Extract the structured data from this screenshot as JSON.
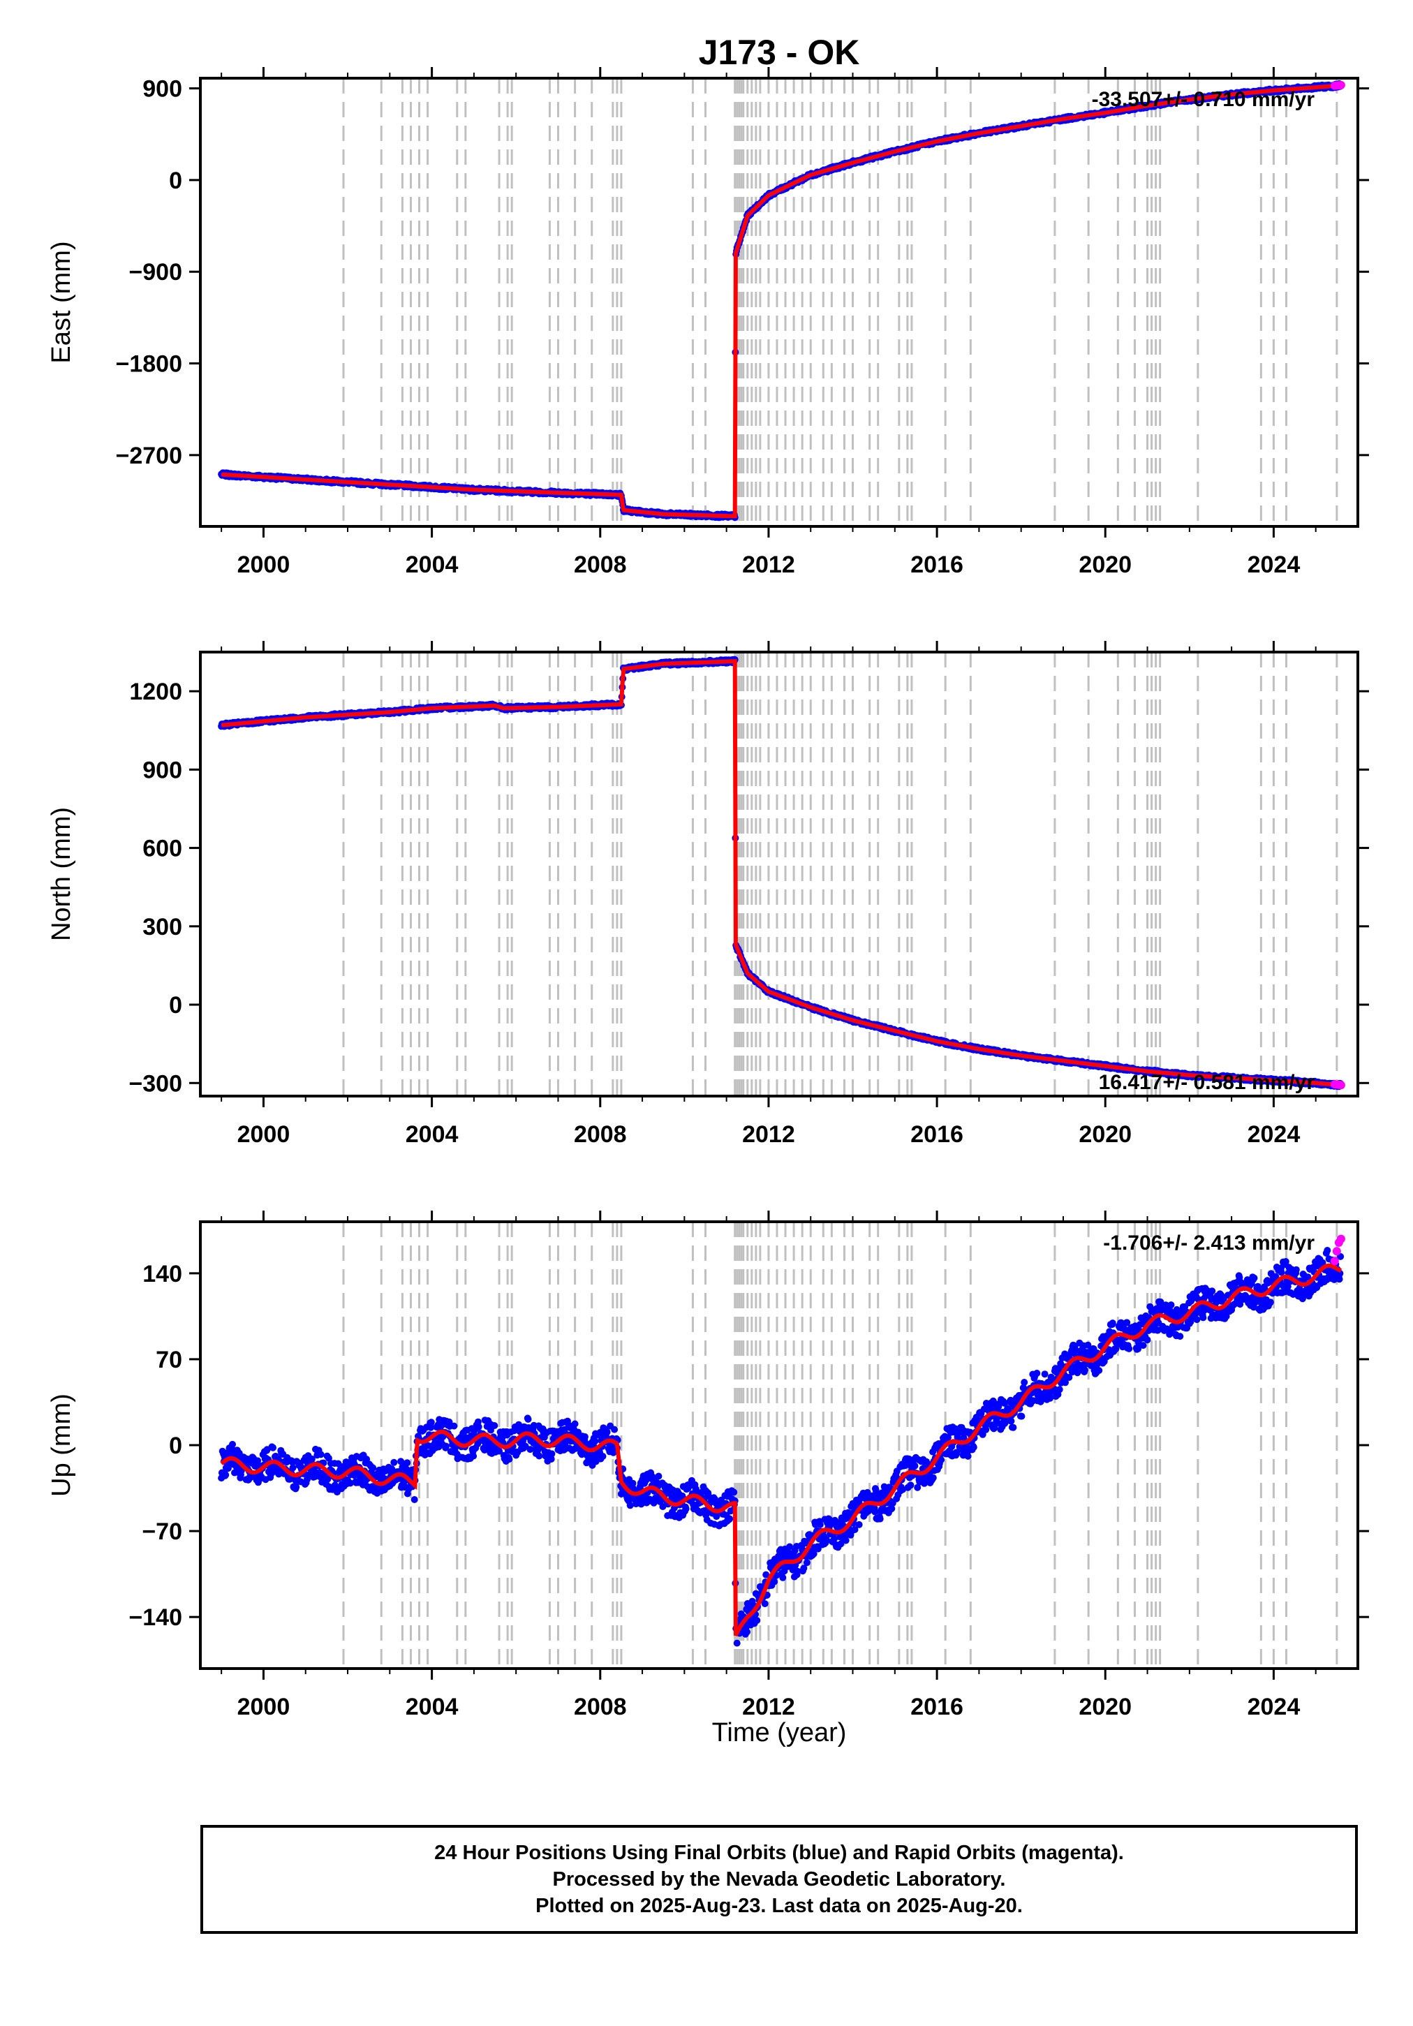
{
  "title": "J173 - OK",
  "xlabel": "Time (year)",
  "footer": {
    "line1": "24 Hour Positions Using Final Orbits (blue) and Rapid Orbits (magenta).",
    "line2": "Processed by the Nevada Geodetic Laboratory.",
    "line3": "Plotted on 2025-Aug-23. Last data on 2025-Aug-20."
  },
  "colors": {
    "final_orbits": "#0000ff",
    "rapid_orbits": "#ff00ff",
    "model": "#ff0000",
    "event_lines": "#c0c0c0"
  },
  "chart_data": [
    {
      "type": "scatter",
      "ylabel": "East (mm)",
      "rate_label": "-33.507+/- 0.710 mm/yr",
      "x_ticks": [
        "2000",
        "2004",
        "2008",
        "2012",
        "2016",
        "2020",
        "2024"
      ],
      "x_tick_values": [
        2000,
        2004,
        2008,
        2012,
        2016,
        2020,
        2024
      ],
      "xlim": [
        1998.5,
        2026.0
      ],
      "y_ticks": [
        "900",
        "0",
        "-900",
        "-1800",
        "-2700"
      ],
      "y_tick_values": [
        900,
        0,
        -900,
        -1800,
        -2700
      ],
      "ylim": [
        -3400,
        1000
      ],
      "series": [
        {
          "style": "final_orbits",
          "x": [
            1999.0,
            2001.0,
            2003.0,
            2005.0,
            2007.0,
            2008.5,
            2008.55,
            2009.5,
            2011.2,
            2011.22,
            2011.5,
            2012.0,
            2013.0,
            2014.0,
            2015.0,
            2016.0,
            2017.0,
            2018.0,
            2019.0,
            2020.0,
            2021.0,
            2022.0,
            2023.0,
            2024.0,
            2025.0,
            2025.6
          ],
          "y": [
            -2890,
            -2940,
            -2990,
            -3040,
            -3070,
            -3090,
            -3240,
            -3280,
            -3300,
            -720,
            -350,
            -150,
            50,
            170,
            280,
            380,
            460,
            530,
            600,
            660,
            730,
            790,
            840,
            880,
            910,
            930
          ]
        },
        {
          "style": "rapid_orbits",
          "x": [
            2025.45,
            2025.5,
            2025.55,
            2025.6
          ],
          "y": [
            926,
            928,
            930,
            932
          ]
        }
      ],
      "event_years": [
        2001.9,
        2002.8,
        2003.3,
        2003.5,
        2003.7,
        2003.9,
        2004.6,
        2004.8,
        2005.6,
        2005.8,
        2005.9,
        2006.8,
        2007.0,
        2007.4,
        2007.8,
        2008.3,
        2008.4,
        2008.5,
        2010.2,
        2010.5,
        2011.2,
        2011.25,
        2011.3,
        2011.35,
        2011.4,
        2011.5,
        2011.6,
        2011.7,
        2011.8,
        2012.0,
        2012.2,
        2012.4,
        2012.6,
        2012.8,
        2013.0,
        2013.3,
        2013.5,
        2013.8,
        2014.0,
        2014.4,
        2014.6,
        2015.1,
        2015.3,
        2015.4,
        2016.2,
        2016.8,
        2018.8,
        2019.6,
        2020.3,
        2020.7,
        2021.0,
        2021.1,
        2021.2,
        2021.3,
        2022.2,
        2023.7,
        2024.0,
        2024.3,
        2025.5
      ]
    },
    {
      "type": "scatter",
      "ylabel": "North (mm)",
      "rate_label": "16.417+/- 0.581 mm/yr",
      "x_ticks": [
        "2000",
        "2004",
        "2008",
        "2012",
        "2016",
        "2020",
        "2024"
      ],
      "x_tick_values": [
        2000,
        2004,
        2008,
        2012,
        2016,
        2020,
        2024
      ],
      "xlim": [
        1998.5,
        2026.0
      ],
      "y_ticks": [
        "1200",
        "900",
        "600",
        "300",
        "0",
        "-300"
      ],
      "y_tick_values": [
        1200,
        900,
        600,
        300,
        0,
        -300
      ],
      "ylim": [
        -350,
        1350
      ],
      "series": [
        {
          "style": "final_orbits",
          "x": [
            1999.0,
            2001.0,
            2003.0,
            2004.0,
            2005.5,
            2005.7,
            2007.0,
            2008.5,
            2008.55,
            2009.5,
            2011.2,
            2011.22,
            2011.5,
            2012.0,
            2013.0,
            2014.0,
            2015.0,
            2016.0,
            2017.0,
            2018.0,
            2019.0,
            2020.0,
            2021.0,
            2022.0,
            2023.0,
            2024.0,
            2025.0,
            2025.6
          ],
          "y": [
            1070,
            1100,
            1120,
            1135,
            1145,
            1135,
            1140,
            1150,
            1285,
            1305,
            1315,
            230,
            120,
            50,
            -10,
            -60,
            -100,
            -140,
            -170,
            -195,
            -215,
            -235,
            -255,
            -270,
            -280,
            -290,
            -300,
            -308
          ]
        },
        {
          "style": "rapid_orbits",
          "x": [
            2025.45,
            2025.5,
            2025.55,
            2025.6
          ],
          "y": [
            -305,
            -306,
            -307,
            -308
          ]
        }
      ],
      "event_years": [
        2001.9,
        2002.8,
        2003.3,
        2003.5,
        2003.7,
        2003.9,
        2004.6,
        2004.8,
        2005.6,
        2005.8,
        2005.9,
        2006.8,
        2007.0,
        2007.4,
        2007.8,
        2008.3,
        2008.4,
        2008.5,
        2010.2,
        2010.5,
        2011.2,
        2011.25,
        2011.3,
        2011.35,
        2011.4,
        2011.5,
        2011.6,
        2011.7,
        2011.8,
        2012.0,
        2012.2,
        2012.4,
        2012.6,
        2012.8,
        2013.0,
        2013.3,
        2013.5,
        2013.8,
        2014.0,
        2014.4,
        2014.6,
        2015.1,
        2015.3,
        2015.4,
        2016.2,
        2016.8,
        2018.8,
        2019.6,
        2020.3,
        2020.7,
        2021.0,
        2021.1,
        2021.2,
        2021.3,
        2022.2,
        2023.7,
        2024.0,
        2024.3,
        2025.5
      ]
    },
    {
      "type": "scatter",
      "ylabel": "Up (mm)",
      "rate_label": "-1.706+/- 2.413 mm/yr",
      "x_ticks": [
        "2000",
        "2004",
        "2008",
        "2012",
        "2016",
        "2020",
        "2024"
      ],
      "x_tick_values": [
        2000,
        2004,
        2008,
        2012,
        2016,
        2020,
        2024
      ],
      "xlim": [
        1998.5,
        2026.0
      ],
      "y_ticks": [
        "140",
        "70",
        "0",
        "-70",
        "-140"
      ],
      "y_tick_values": [
        140,
        70,
        0,
        -70,
        -140
      ],
      "ylim": [
        -182,
        182
      ],
      "series": [
        {
          "style": "final_orbits",
          "x": [
            1999.0,
            2000.0,
            2001.0,
            2002.0,
            2003.0,
            2003.6,
            2003.65,
            2004.5,
            2005.5,
            2006.5,
            2007.5,
            2008.4,
            2008.5,
            2009.0,
            2010.0,
            2011.0,
            2011.2,
            2011.22,
            2011.5,
            2012.0,
            2013.0,
            2014.0,
            2015.0,
            2016.0,
            2017.0,
            2018.0,
            2019.0,
            2020.0,
            2021.0,
            2022.0,
            2023.0,
            2024.0,
            2025.0,
            2025.6
          ],
          "y": [
            -15,
            -18,
            -20,
            -22,
            -28,
            -30,
            8,
            5,
            3,
            5,
            2,
            -2,
            -30,
            -38,
            -45,
            -50,
            -52,
            -160,
            -140,
            -110,
            -80,
            -60,
            -35,
            -10,
            15,
            35,
            60,
            80,
            98,
            108,
            120,
            130,
            138,
            145
          ]
        },
        {
          "style": "rapid_orbits",
          "x": [
            2025.45,
            2025.5,
            2025.55,
            2025.6
          ],
          "y": [
            150,
            158,
            165,
            168
          ]
        }
      ],
      "event_years": [
        2001.9,
        2002.8,
        2003.3,
        2003.5,
        2003.7,
        2003.9,
        2004.6,
        2004.8,
        2005.6,
        2005.8,
        2005.9,
        2006.8,
        2007.0,
        2007.4,
        2007.8,
        2008.3,
        2008.4,
        2008.5,
        2010.2,
        2010.5,
        2011.2,
        2011.25,
        2011.3,
        2011.35,
        2011.4,
        2011.5,
        2011.6,
        2011.7,
        2011.8,
        2012.0,
        2012.2,
        2012.4,
        2012.6,
        2012.8,
        2013.0,
        2013.3,
        2013.5,
        2013.8,
        2014.0,
        2014.4,
        2014.6,
        2015.1,
        2015.3,
        2015.4,
        2016.2,
        2016.8,
        2018.8,
        2019.6,
        2020.3,
        2020.7,
        2021.0,
        2021.1,
        2021.2,
        2021.3,
        2022.2,
        2023.7,
        2024.0,
        2024.3,
        2025.5
      ]
    }
  ]
}
